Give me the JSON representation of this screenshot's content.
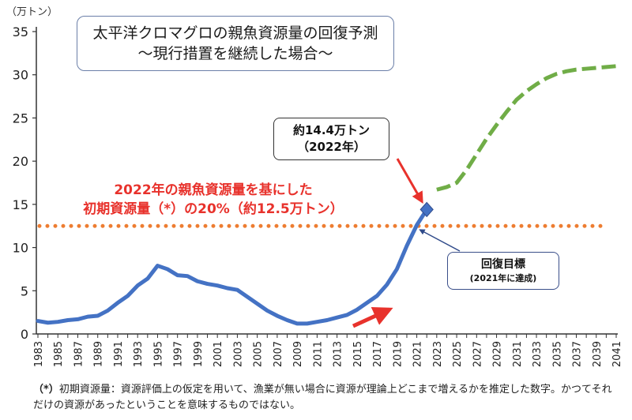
{
  "chart_data": {
    "type": "line",
    "title_line1": "太平洋クロマグロの親魚資源量の回復予測",
    "title_line2": "〜現行措置を継続した場合〜",
    "yunit": "（万トン）",
    "ylim": [
      0,
      35
    ],
    "yticks": [
      0,
      5,
      10,
      15,
      20,
      25,
      30,
      35
    ],
    "xlim": [
      1983,
      2041
    ],
    "xticks": [
      1983,
      1985,
      1987,
      1989,
      1991,
      1993,
      1995,
      1997,
      1999,
      2001,
      2003,
      2005,
      2007,
      2009,
      2011,
      2013,
      2015,
      2017,
      2019,
      2021,
      2023,
      2025,
      2027,
      2029,
      2031,
      2033,
      2035,
      2037,
      2039,
      2041
    ],
    "grid": false,
    "historical": {
      "color": "#4472c4",
      "x": [
        1983,
        1984,
        1985,
        1986,
        1987,
        1988,
        1989,
        1990,
        1991,
        1992,
        1993,
        1994,
        1995,
        1996,
        1997,
        1998,
        1999,
        2000,
        2001,
        2002,
        2003,
        2004,
        2005,
        2006,
        2007,
        2008,
        2009,
        2010,
        2011,
        2012,
        2013,
        2014,
        2015,
        2016,
        2017,
        2018,
        2019,
        2020,
        2021,
        2022
      ],
      "y": [
        1.5,
        1.3,
        1.4,
        1.6,
        1.7,
        2.0,
        2.1,
        2.7,
        3.6,
        4.4,
        5.6,
        6.4,
        7.9,
        7.5,
        6.8,
        6.7,
        6.1,
        5.8,
        5.6,
        5.3,
        5.1,
        4.3,
        3.5,
        2.7,
        2.1,
        1.6,
        1.2,
        1.2,
        1.4,
        1.6,
        1.9,
        2.2,
        2.8,
        3.6,
        4.4,
        5.7,
        7.5,
        10.2,
        12.6,
        14.4
      ]
    },
    "projection": {
      "color": "#70ad47",
      "x": [
        2022,
        2023,
        2024,
        2025,
        2026,
        2027,
        2028,
        2029,
        2030,
        2031,
        2032,
        2033,
        2034,
        2035,
        2036,
        2037,
        2038,
        2039,
        2040,
        2041
      ],
      "y": [
        14.4,
        16.7,
        17.0,
        17.5,
        19.0,
        20.8,
        22.6,
        24.2,
        25.7,
        27.1,
        28.1,
        28.9,
        29.6,
        30.1,
        30.4,
        30.6,
        30.7,
        30.8,
        30.9,
        31.0
      ]
    },
    "reference_line": {
      "y": 12.5,
      "color": "#ed7d31",
      "label_line1": "2022年の親魚資源量を基にした",
      "label_line2": "初期資源量（*）の20%（約12.5万トン）"
    },
    "point_2022": {
      "x": 2022,
      "y": 14.4
    },
    "callout_2022": {
      "line1": "約14.4万トン",
      "line2": "（2022年）"
    },
    "callout_target": {
      "line1": "回復目標",
      "line2": "(2021年に達成)"
    },
    "footnote": {
      "mark": "（*）",
      "text": "初期資源量：資源評価上の仮定を用いて、漁業が無い場合に資源が理論上どこまで増えるかを推定した数字。かつてそれだけの資源があったということを意味するものではない。"
    }
  }
}
